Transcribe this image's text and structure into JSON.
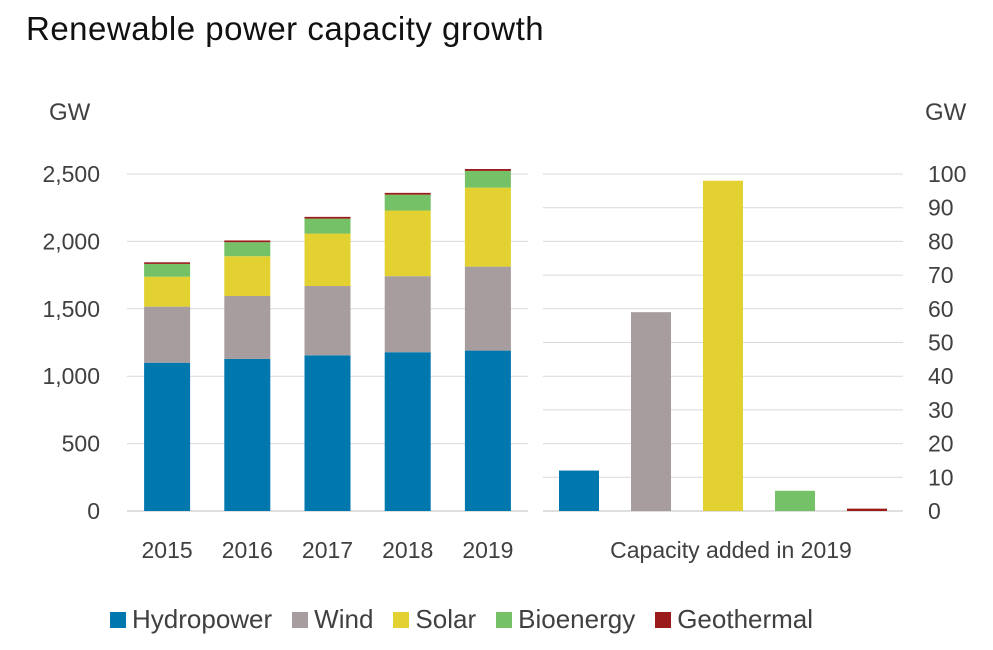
{
  "title": "Renewable power capacity growth",
  "colors": {
    "Hydropower": "#0077AD",
    "Wind": "#A89D9E",
    "Solar": "#E3D132",
    "Bioenergy": "#74C167",
    "Geothermal": "#9B1A1A",
    "gridline": "#D9D9D9",
    "axis": "#BFBFBF"
  },
  "chart_data": [
    {
      "type": "bar",
      "stacked": true,
      "categories": [
        "2015",
        "2016",
        "2017",
        "2018",
        "2019"
      ],
      "series": [
        {
          "name": "Hydropower",
          "values": [
            1100,
            1128,
            1155,
            1178,
            1190
          ]
        },
        {
          "name": "Wind",
          "values": [
            416,
            467,
            514,
            564,
            623
          ]
        },
        {
          "name": "Solar",
          "values": [
            222,
            295,
            389,
            487,
            586
          ]
        },
        {
          "name": "Bioenergy",
          "values": [
            95,
            104,
            111,
            118,
            124
          ]
        },
        {
          "name": "Geothermal",
          "values": [
            12,
            13,
            13,
            13,
            14
          ]
        }
      ],
      "ylabel": "GW",
      "ylim": [
        0,
        2500
      ],
      "yticks": [
        "0",
        "500",
        "1,000",
        "1,500",
        "2,000",
        "2,500"
      ],
      "grid": true
    },
    {
      "type": "bar",
      "categories": [
        "Hydropower",
        "Wind",
        "Solar",
        "Bioenergy",
        "Geothermal"
      ],
      "values": [
        12,
        59,
        98,
        6,
        0.7
      ],
      "xlabel": "Capacity added in 2019",
      "ylabel": "GW",
      "ylim": [
        0,
        100
      ],
      "yticks": [
        "0",
        "10",
        "20",
        "30",
        "40",
        "50",
        "60",
        "70",
        "80",
        "90",
        "100"
      ],
      "grid": true
    }
  ],
  "legend": [
    {
      "label": "Hydropower",
      "color": "#0077AD"
    },
    {
      "label": "Wind",
      "color": "#A89D9E"
    },
    {
      "label": "Solar",
      "color": "#E3D132"
    },
    {
      "label": "Bioenergy",
      "color": "#74C167"
    },
    {
      "label": "Geothermal",
      "color": "#9B1A1A"
    }
  ]
}
